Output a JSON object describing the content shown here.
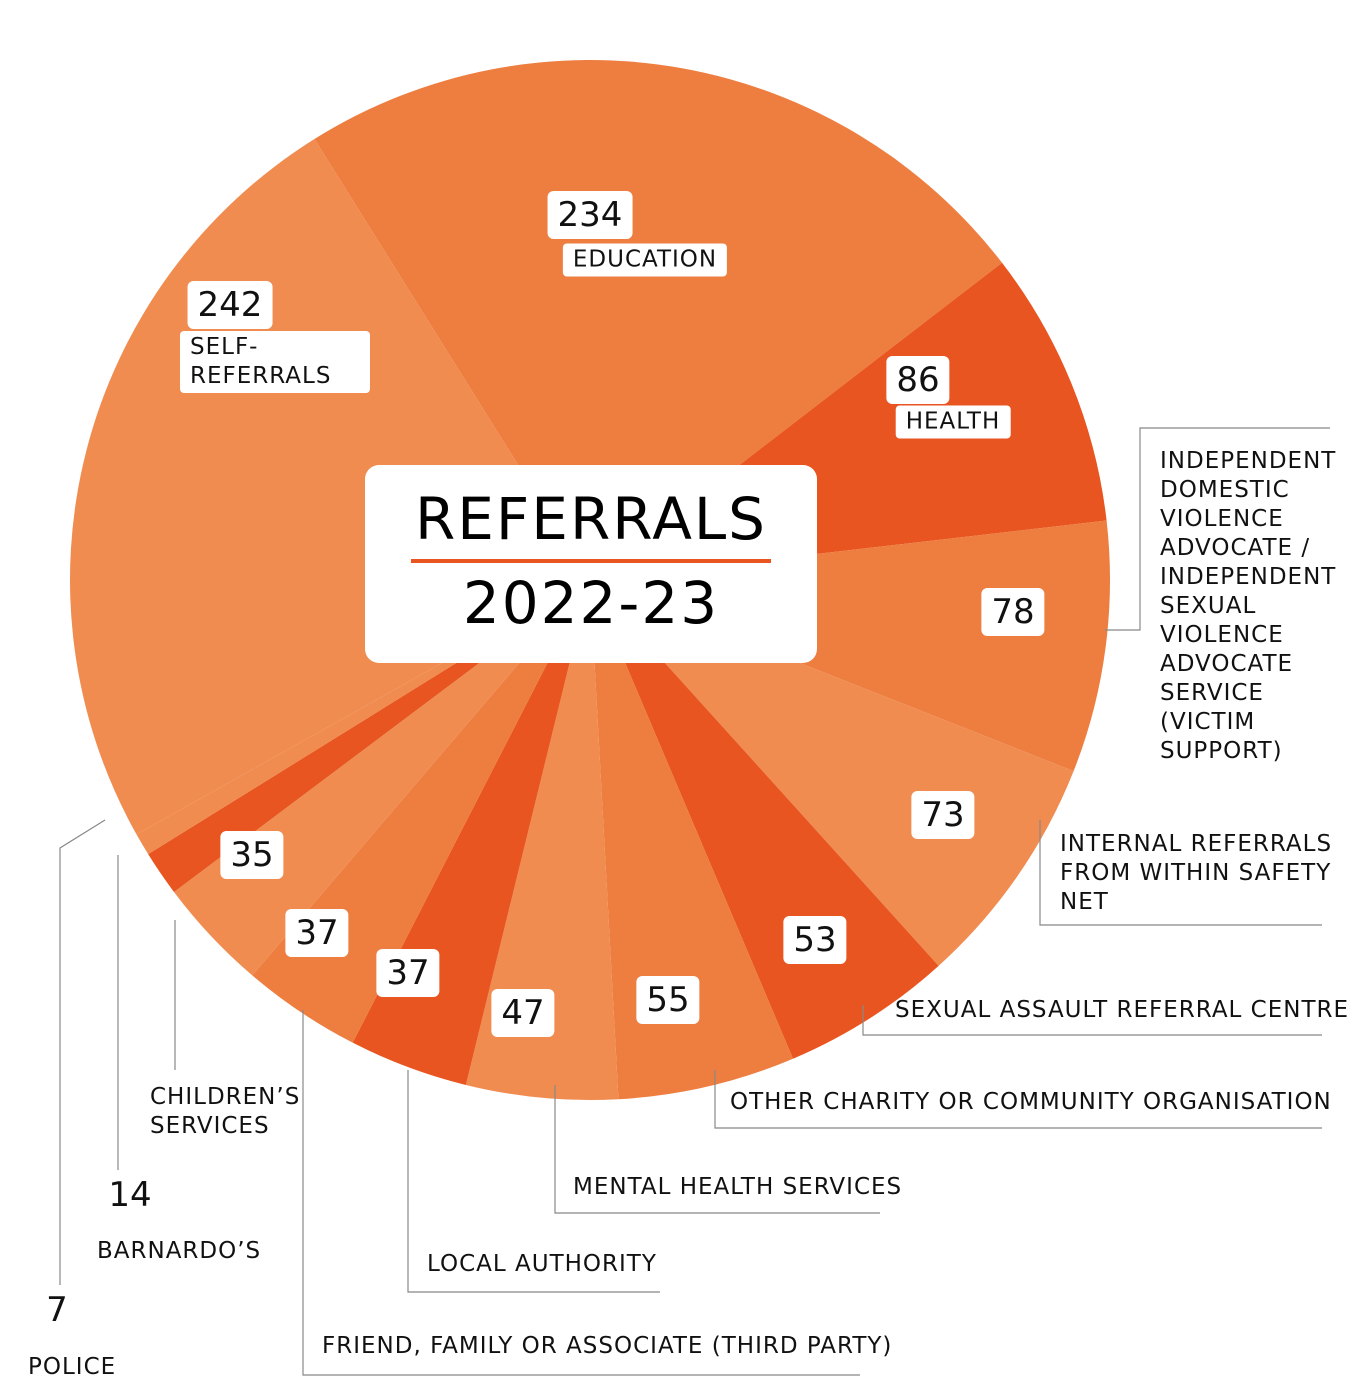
{
  "chart_data": {
    "type": "pie",
    "title": "REFERRALS",
    "subtitle": "2022-23",
    "categories": [
      "EDUCATION",
      "HEALTH",
      "INDEPENDENT DOMESTIC VIOLENCE ADVOCATE / INDEPENDENT SEXUAL VIOLENCE ADVOCATE SERVICE (VICTIM SUPPORT)",
      "INTERNAL REFERRALS FROM WITHIN SAFETY NET",
      "SEXUAL ASSAULT REFERRAL CENTRE",
      "OTHER CHARITY OR COMMUNITY ORGANISATION",
      "MENTAL HEALTH SERVICES",
      "LOCAL AUTHORITY",
      "FRIEND, FAMILY OR ASSOCIATE (THIRD PARTY)",
      "CHILDREN’S SERVICES",
      "BARNARDO’S",
      "POLICE",
      "SELF-REFERRALS"
    ],
    "values": [
      234,
      86,
      78,
      73,
      53,
      55,
      47,
      37,
      37,
      35,
      14,
      7,
      242
    ],
    "colors": [
      "#ee7d40",
      "#e85520",
      "#ee7d40",
      "#f08c50",
      "#e85520",
      "#ee7d40",
      "#f08c50",
      "#e85520",
      "#ee7d40",
      "#f08c50",
      "#e85520",
      "#f08c50",
      "#f08c50"
    ]
  }
}
